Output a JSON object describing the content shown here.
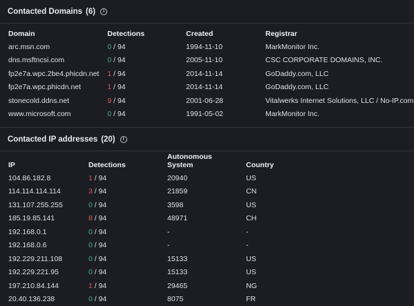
{
  "domains": {
    "title": "Contacted Domains",
    "count": "(6)",
    "columns": [
      "Domain",
      "Detections",
      "Created",
      "Registrar"
    ],
    "rows": [
      {
        "domain": "arc.msn.com",
        "det": "0",
        "total": " / 94",
        "det_positive": false,
        "created": "1994-11-10",
        "registrar": "MarkMonitor Inc."
      },
      {
        "domain": "dns.msftncsi.com",
        "det": "0",
        "total": " / 94",
        "det_positive": false,
        "created": "2005-11-10",
        "registrar": "CSC CORPORATE DOMAINS, INC."
      },
      {
        "domain": "fp2e7a.wpc.2be4.phicdn.net",
        "det": "1",
        "total": " / 94",
        "det_positive": true,
        "created": "2014-11-14",
        "registrar": "GoDaddy.com, LLC"
      },
      {
        "domain": "fp2e7a.wpc.phicdn.net",
        "det": "1",
        "total": " / 94",
        "det_positive": true,
        "created": "2014-11-14",
        "registrar": "GoDaddy.com, LLC"
      },
      {
        "domain": "stonecold.ddns.net",
        "det": "9",
        "total": " / 94",
        "det_positive": true,
        "created": "2001-06-28",
        "registrar": "Vitalwerks Internet Solutions, LLC / No-IP.com"
      },
      {
        "domain": "www.microsoft.com",
        "det": "0",
        "total": " / 94",
        "det_positive": false,
        "created": "1991-05-02",
        "registrar": "MarkMonitor Inc."
      }
    ]
  },
  "ips": {
    "title": "Contacted IP addresses",
    "count": "(20)",
    "columns": [
      "IP",
      "Detections",
      "Autonomous System",
      "Country"
    ],
    "rows": [
      {
        "ip": "104.86.182.8",
        "det": "1",
        "total": " / 94",
        "det_positive": true,
        "as": "20940",
        "country": "US"
      },
      {
        "ip": "114.114.114.114",
        "det": "3",
        "total": " / 94",
        "det_positive": true,
        "as": "21859",
        "country": "CN"
      },
      {
        "ip": "131.107.255.255",
        "det": "0",
        "total": " / 94",
        "det_positive": false,
        "as": "3598",
        "country": "US"
      },
      {
        "ip": "185.19.85.141",
        "det": "8",
        "total": " / 94",
        "det_positive": true,
        "as": "48971",
        "country": "CH"
      },
      {
        "ip": "192.168.0.1",
        "det": "0",
        "total": " / 94",
        "det_positive": false,
        "as": "-",
        "country": "-"
      },
      {
        "ip": "192.168.0.6",
        "det": "0",
        "total": " / 94",
        "det_positive": false,
        "as": "-",
        "country": "-"
      },
      {
        "ip": "192.229.211.108",
        "det": "0",
        "total": " / 94",
        "det_positive": false,
        "as": "15133",
        "country": "US"
      },
      {
        "ip": "192.229.221.95",
        "det": "0",
        "total": " / 94",
        "det_positive": false,
        "as": "15133",
        "country": "US"
      },
      {
        "ip": "197.210.84.144",
        "det": "1",
        "total": " / 94",
        "det_positive": true,
        "as": "29465",
        "country": "NG"
      },
      {
        "ip": "20.40.136.238",
        "det": "0",
        "total": " / 94",
        "det_positive": false,
        "as": "8075",
        "country": "FR"
      }
    ]
  },
  "icons": {
    "info": "info-icon"
  },
  "colors": {
    "background": "#1b1d23",
    "detection_zero": "#4caf83",
    "detection_positive": "#e05a5a"
  }
}
